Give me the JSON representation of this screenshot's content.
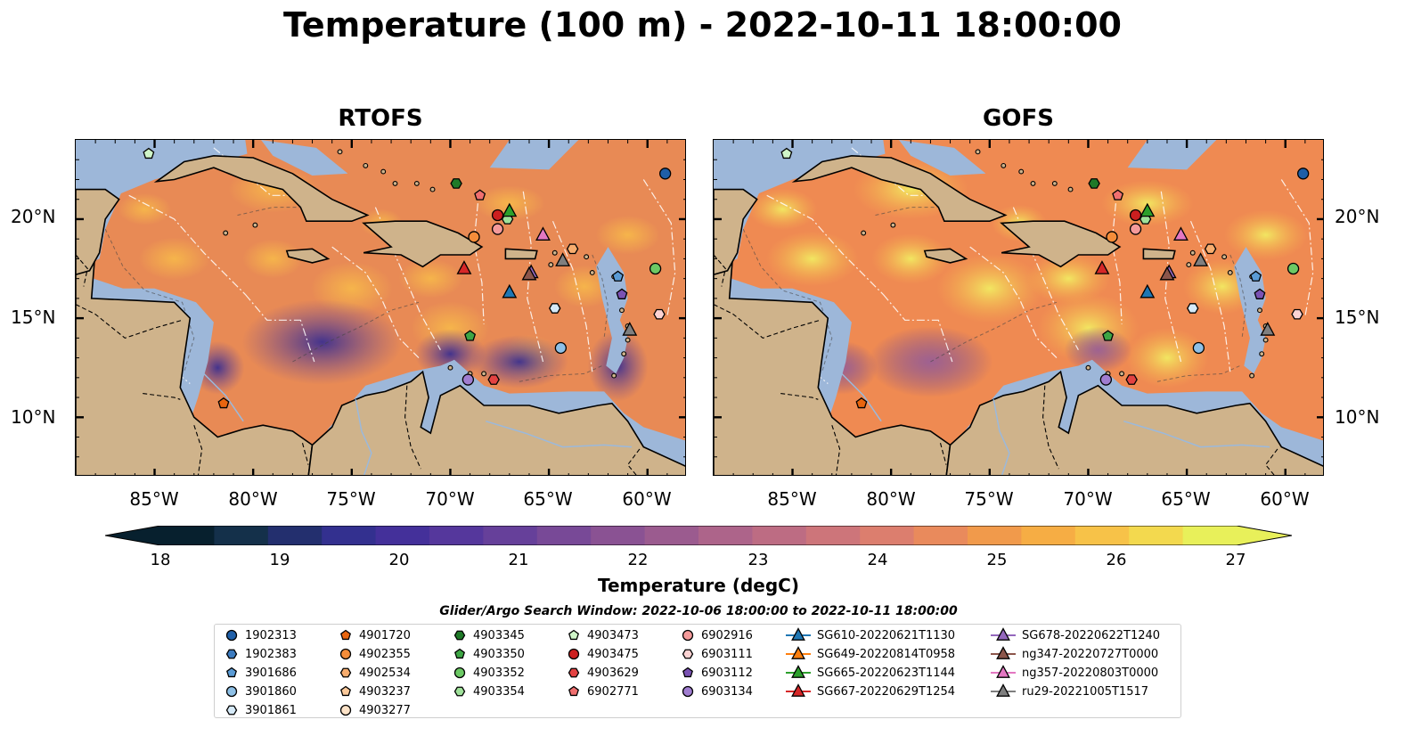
{
  "title": "Temperature (100 m) - 2022-10-11 18:00:00",
  "panels": [
    {
      "key": "rtofs",
      "title": "RTOFS"
    },
    {
      "key": "gofs",
      "title": "GOFS"
    }
  ],
  "map": {
    "lon_range": [
      -89,
      -58
    ],
    "lat_range": [
      7,
      24
    ],
    "lon_ticks": [
      "85°W",
      "80°W",
      "75°W",
      "70°W",
      "65°W",
      "60°W"
    ],
    "lon_tick_values": [
      -85,
      -80,
      -75,
      -70,
      -65,
      -60
    ],
    "lat_ticks": [
      "10°N",
      "15°N",
      "20°N"
    ],
    "lat_tick_values": [
      10,
      15,
      20
    ],
    "colors": {
      "ocean_shelf": "#9db7d9",
      "land": "#cfb38b",
      "deep_pacific": "#0b2233"
    }
  },
  "colorbar": {
    "label": "Temperature (degC)",
    "min": 18,
    "max": 27,
    "step": 0.5,
    "ticks": [
      "18",
      "19",
      "20",
      "21",
      "22",
      "23",
      "24",
      "25",
      "26",
      "27"
    ],
    "colors": [
      "#07202e",
      "#14304a",
      "#232f6e",
      "#33308f",
      "#44309a",
      "#55379c",
      "#66409a",
      "#784997",
      "#8a5293",
      "#9b5b8f",
      "#ad648a",
      "#bd6c83",
      "#cd757a",
      "#dc7e6e",
      "#e98a5c",
      "#f19a4b",
      "#f6ad44",
      "#f7c248",
      "#f3d94e",
      "#e8f05a"
    ],
    "extend": "both"
  },
  "search_window": "Glider/Argo Search Window: 2022-10-06 18:00:00 to 2022-10-11 18:00:00",
  "legend": {
    "columns": [
      [
        {
          "label": "1902313",
          "marker": "circle",
          "color": "#1f5fa8"
        },
        {
          "label": "1902383",
          "marker": "hexagon",
          "color": "#3c7bbf"
        },
        {
          "label": "3901686",
          "marker": "pentagon",
          "color": "#5a9bd5"
        },
        {
          "label": "3901860",
          "marker": "circle",
          "color": "#8ec0e6"
        },
        {
          "label": "3901861",
          "marker": "hexagon",
          "color": "#d6eaf8"
        }
      ],
      [
        {
          "label": "4901720",
          "marker": "pentagon",
          "color": "#e8650f"
        },
        {
          "label": "4902355",
          "marker": "circle",
          "color": "#f58d3a"
        },
        {
          "label": "4902534",
          "marker": "hexagon",
          "color": "#f8ad6e"
        },
        {
          "label": "4903237",
          "marker": "pentagon",
          "color": "#fbc99a"
        },
        {
          "label": "4903277",
          "marker": "circle",
          "color": "#fde3c8"
        }
      ],
      [
        {
          "label": "4903345",
          "marker": "hexagon",
          "color": "#1f7a28"
        },
        {
          "label": "4903350",
          "marker": "pentagon",
          "color": "#3ea645"
        },
        {
          "label": "4903352",
          "marker": "circle",
          "color": "#6cc964"
        },
        {
          "label": "4903354",
          "marker": "hexagon",
          "color": "#9fe19a"
        }
      ],
      [
        {
          "label": "4903473",
          "marker": "pentagon",
          "color": "#cff5c8"
        },
        {
          "label": "4903475",
          "marker": "circle",
          "color": "#cc1f1f"
        },
        {
          "label": "4903629",
          "marker": "hexagon",
          "color": "#e34242"
        },
        {
          "label": "6902771",
          "marker": "pentagon",
          "color": "#f06f6f"
        }
      ],
      [
        {
          "label": "6902916",
          "marker": "circle",
          "color": "#f49a9a"
        },
        {
          "label": "6903111",
          "marker": "hexagon",
          "color": "#fcd3d3"
        },
        {
          "label": "6903112",
          "marker": "pentagon",
          "color": "#7a52b3"
        },
        {
          "label": "6903134",
          "marker": "circle",
          "color": "#a07dd0"
        }
      ],
      [
        {
          "label": "SG610-20220621T1130",
          "marker": "triangle",
          "color": "#1f77b4",
          "line": true
        },
        {
          "label": "SG649-20220814T0958",
          "marker": "triangle",
          "color": "#ff7f0e",
          "line": true
        },
        {
          "label": "SG665-20220623T1144",
          "marker": "triangle",
          "color": "#2ca02c",
          "line": true
        },
        {
          "label": "SG667-20220629T1254",
          "marker": "triangle",
          "color": "#d62728",
          "line": true
        }
      ],
      [
        {
          "label": "SG678-20220622T1240",
          "marker": "triangle",
          "color": "#9467bd",
          "line": true
        },
        {
          "label": "ng347-20220727T0000",
          "marker": "triangle",
          "color": "#8c564b",
          "line": true
        },
        {
          "label": "ng357-20220803T0000",
          "marker": "triangle",
          "color": "#e377c2",
          "line": true
        },
        {
          "label": "ru29-20221005T1517",
          "marker": "triangle",
          "color": "#7f7f7f",
          "line": true
        }
      ]
    ]
  },
  "observations": [
    {
      "id": "1902313",
      "lon": -59.1,
      "lat": 22.3
    },
    {
      "id": "3901686",
      "lon": -61.5,
      "lat": 17.1
    },
    {
      "id": "3901860",
      "lon": -64.4,
      "lat": 13.5
    },
    {
      "id": "3901861",
      "lon": -64.7,
      "lat": 15.5
    },
    {
      "id": "4901720",
      "lon": -81.5,
      "lat": 10.7
    },
    {
      "id": "4902355",
      "lon": -68.8,
      "lat": 19.1
    },
    {
      "id": "4902534",
      "lon": -63.8,
      "lat": 18.5
    },
    {
      "id": "4903345",
      "lon": -69.7,
      "lat": 21.8
    },
    {
      "id": "4903350",
      "lon": -69.0,
      "lat": 14.1
    },
    {
      "id": "4903352",
      "lon": -59.6,
      "lat": 17.5
    },
    {
      "id": "4903354",
      "lon": -67.1,
      "lat": 20.0
    },
    {
      "id": "4903473",
      "lon": -85.3,
      "lat": 23.3
    },
    {
      "id": "4903475",
      "lon": -67.6,
      "lat": 20.2
    },
    {
      "id": "6902771",
      "lon": -68.5,
      "lat": 21.2
    },
    {
      "id": "6902916",
      "lon": -67.6,
      "lat": 19.5
    },
    {
      "id": "6903111",
      "lon": -59.4,
      "lat": 15.2
    },
    {
      "id": "6903112",
      "lon": -61.3,
      "lat": 16.2
    },
    {
      "id": "6903134",
      "lon": -69.1,
      "lat": 11.9
    },
    {
      "id": "4903629",
      "lon": -67.8,
      "lat": 11.9
    },
    {
      "id": "SG610-20220621T1130",
      "lon": -67.0,
      "lat": 16.3
    },
    {
      "id": "SG665-20220623T1144",
      "lon": -67.0,
      "lat": 20.4
    },
    {
      "id": "SG667-20220629T1254",
      "lon": -69.3,
      "lat": 17.5
    },
    {
      "id": "SG678-20220622T1240",
      "lon": -65.9,
      "lat": 17.3
    },
    {
      "id": "ng347-20220727T0000",
      "lon": -66.0,
      "lat": 17.2
    },
    {
      "id": "ng357-20220803T0000",
      "lon": -65.3,
      "lat": 19.2
    },
    {
      "id": "ru29-20221005T1517",
      "lon": -60.9,
      "lat": 14.4
    },
    {
      "id": "ru29-20221005T1517",
      "lon": -64.3,
      "lat": 17.9
    }
  ]
}
